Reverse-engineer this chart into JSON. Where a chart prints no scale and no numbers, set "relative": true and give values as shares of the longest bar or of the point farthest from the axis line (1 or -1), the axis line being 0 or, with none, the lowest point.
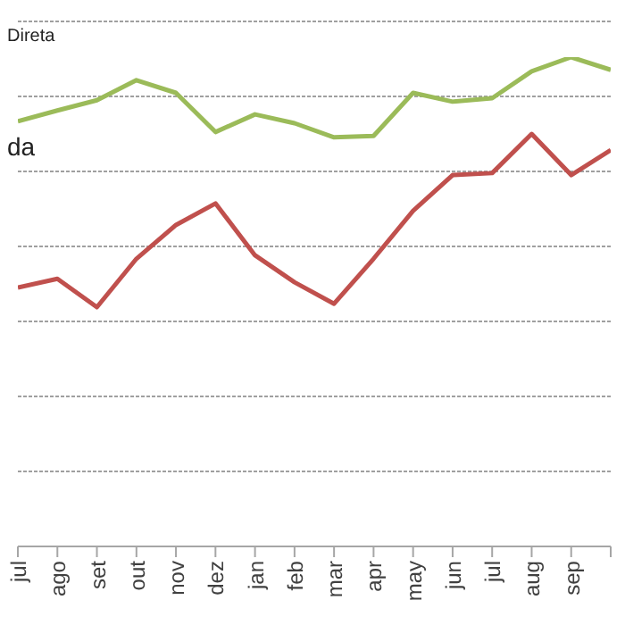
{
  "chart_data": {
    "type": "line",
    "relative": true,
    "grid": "y",
    "marker": "none",
    "line_style": "solid",
    "categories": [
      "jul",
      "ago",
      "set",
      "out",
      "nov",
      "dez",
      "jan",
      "feb",
      "mar",
      "apr",
      "may",
      "jun",
      "jul",
      "aug",
      "sep",
      null
    ],
    "series": [
      {
        "color": "#9bbb59",
        "values": [
          0.869,
          0.891,
          0.912,
          0.953,
          0.927,
          0.847,
          0.883,
          0.865,
          0.836,
          0.839,
          0.927,
          0.909,
          0.916,
          0.971,
          1,
          0.974
        ]
      },
      {
        "color": "#c0504d",
        "values": [
          0.529,
          0.547,
          0.489,
          0.588,
          0.657,
          0.701,
          0.595,
          0.54,
          0.496,
          0.588,
          0.686,
          0.759,
          0.763,
          0.843,
          0.759,
          0.81
        ]
      }
    ],
    "annotations": [
      "Direta",
      "da"
    ]
  }
}
